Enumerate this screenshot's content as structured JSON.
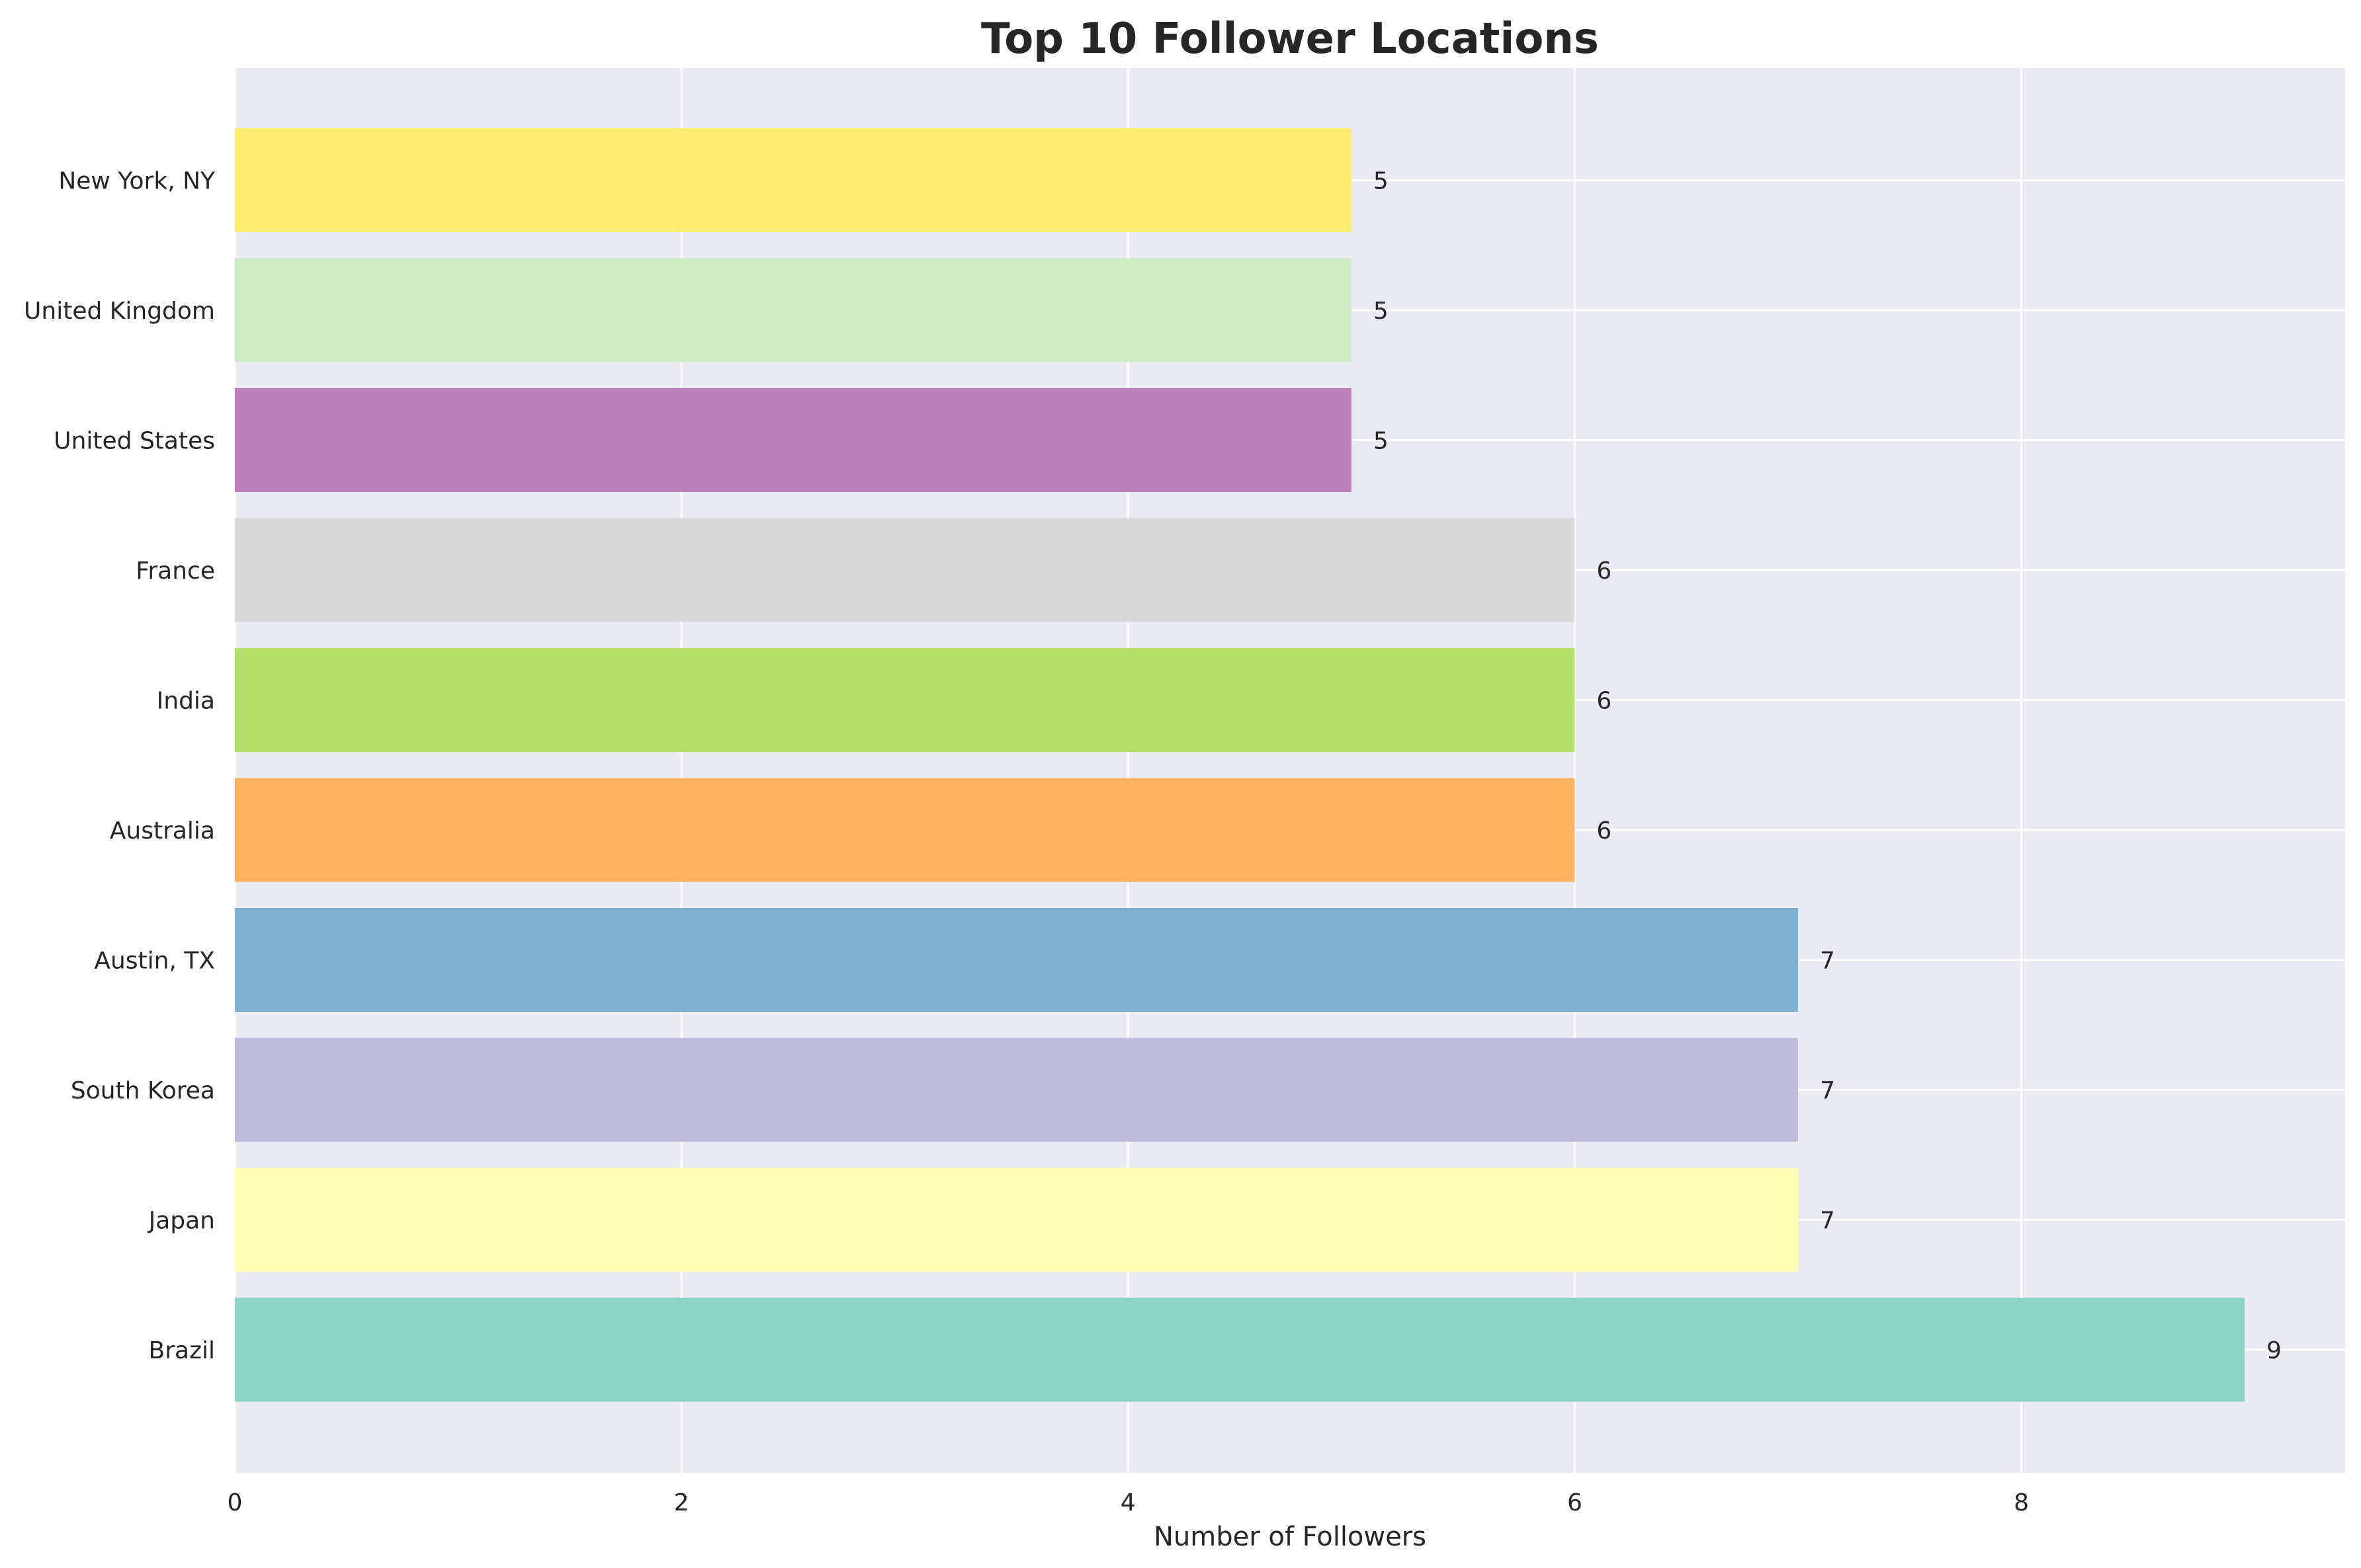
{
  "chart_data": {
    "type": "bar",
    "orientation": "horizontal",
    "title": "Top 10 Follower Locations",
    "xlabel": "Number of Followers",
    "ylabel": "",
    "xlim": [
      0,
      9.45
    ],
    "xticks": [
      0,
      2,
      4,
      6,
      8
    ],
    "grid": true,
    "background_color": "#EAEAF2",
    "categories": [
      "Brazil",
      "Japan",
      "South Korea",
      "Austin, TX",
      "Australia",
      "India",
      "France",
      "United States",
      "United Kingdom",
      "New York, NY"
    ],
    "values": [
      9,
      7,
      7,
      7,
      6,
      6,
      6,
      5,
      5,
      5
    ],
    "colors": [
      "#8DD3C7",
      "#FFFFB3",
      "#BEBADA",
      "#80B1D3",
      "#FDB462",
      "#B3DE69",
      "#D9D9D9",
      "#BC80BD",
      "#CCEBC5",
      "#FFED6F"
    ]
  }
}
